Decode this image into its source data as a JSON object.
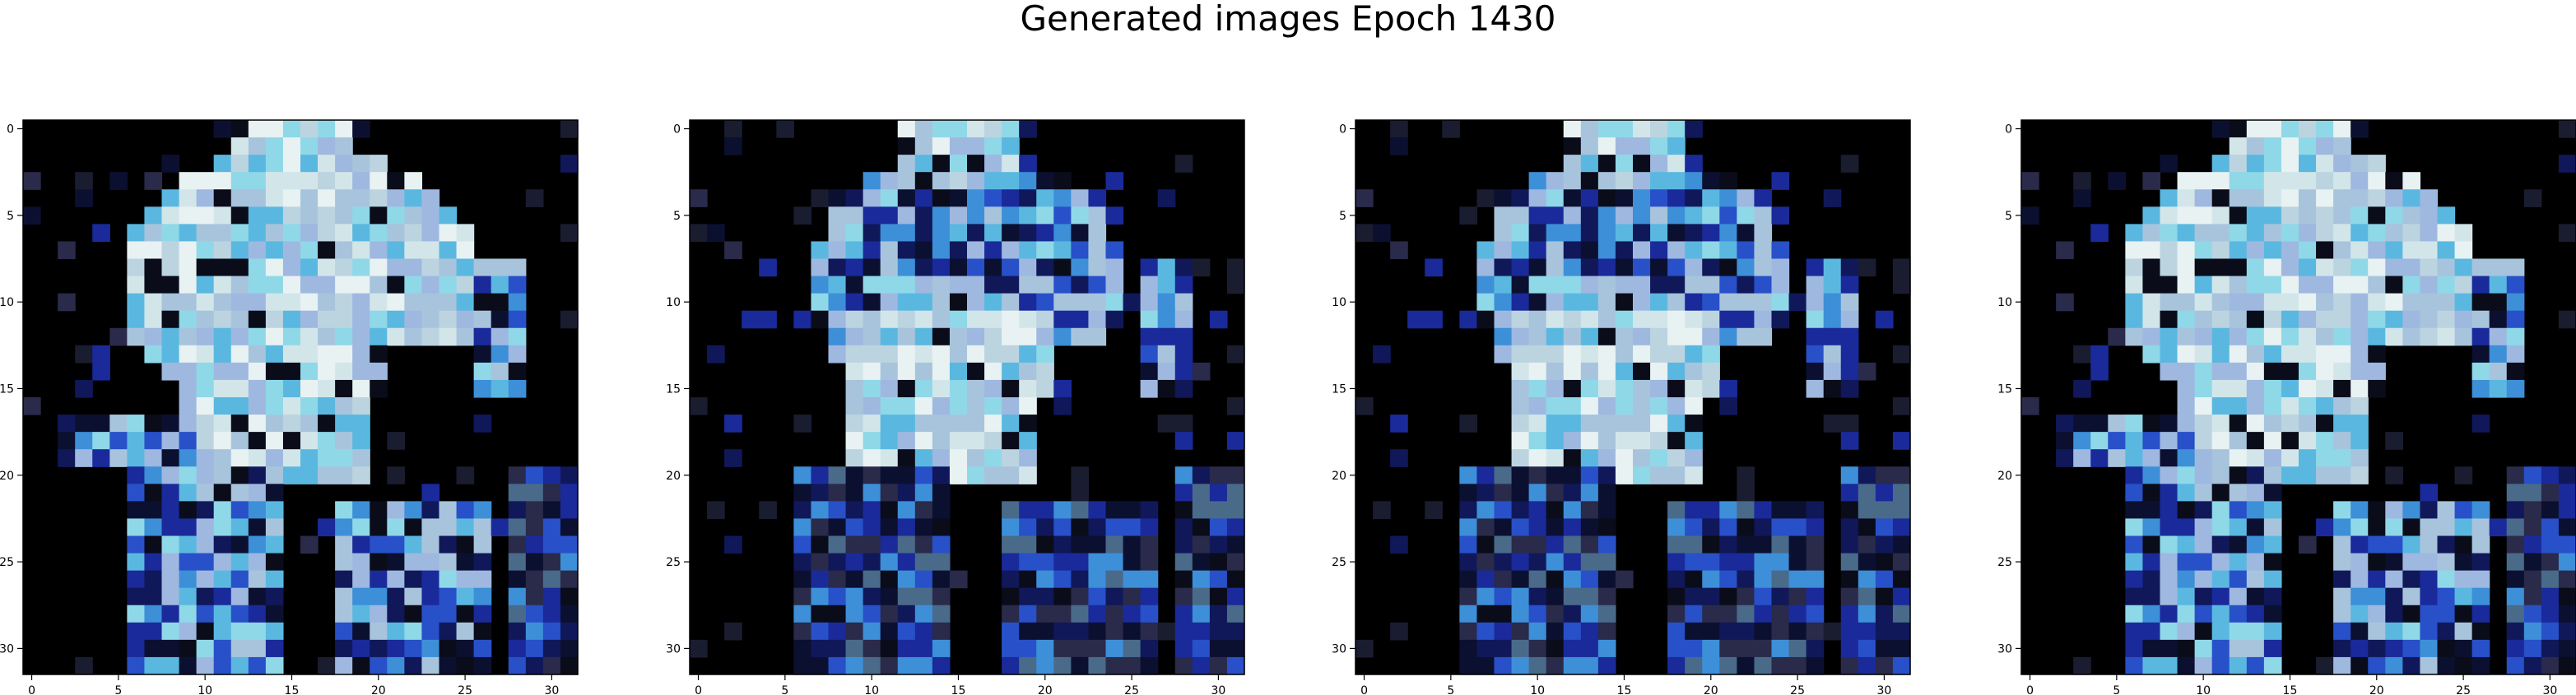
{
  "title": "Generated images Epoch 1430",
  "chart_data": [
    {
      "type": "heatmap",
      "grid": [
        32,
        32
      ],
      "xticks": [
        "0",
        "5",
        "10",
        "15",
        "20",
        "25",
        "30"
      ],
      "yticks": [
        "0",
        "5",
        "10",
        "15",
        "20",
        "25",
        "30"
      ],
      "background": "#000000",
      "image_variant": "A"
    },
    {
      "type": "heatmap",
      "grid": [
        32,
        32
      ],
      "xticks": [
        "0",
        "5",
        "10",
        "15",
        "20",
        "25",
        "30"
      ],
      "yticks": [
        "0",
        "5",
        "10",
        "15",
        "20",
        "25",
        "30"
      ],
      "background": "#000000",
      "image_variant": "B"
    },
    {
      "type": "heatmap",
      "grid": [
        32,
        32
      ],
      "xticks": [
        "0",
        "5",
        "10",
        "15",
        "20",
        "25",
        "30"
      ],
      "yticks": [
        "0",
        "5",
        "10",
        "15",
        "20",
        "25",
        "30"
      ],
      "background": "#000000",
      "image_variant": "B"
    },
    {
      "type": "heatmap",
      "grid": [
        32,
        32
      ],
      "xticks": [
        "0",
        "5",
        "10",
        "15",
        "20",
        "25",
        "30"
      ],
      "yticks": [
        "0",
        "5",
        "10",
        "15",
        "20",
        "25",
        "30"
      ],
      "background": "#000000",
      "image_variant": "A"
    }
  ],
  "palette": [
    "#e8f2f2",
    "#d2e6ea",
    "#bcd4e0",
    "#a8c4dc",
    "#9fb8e0",
    "#8fd8e8",
    "#5ab8e0",
    "#3d8fd8",
    "#2850c8",
    "#1a2a9a",
    "#10185a",
    "#0c1030",
    "#2a2a4a",
    "#4a6a8a",
    "#9ccca8",
    "#c8dcb0",
    "#6ab8a8",
    "#5a5a8a"
  ]
}
